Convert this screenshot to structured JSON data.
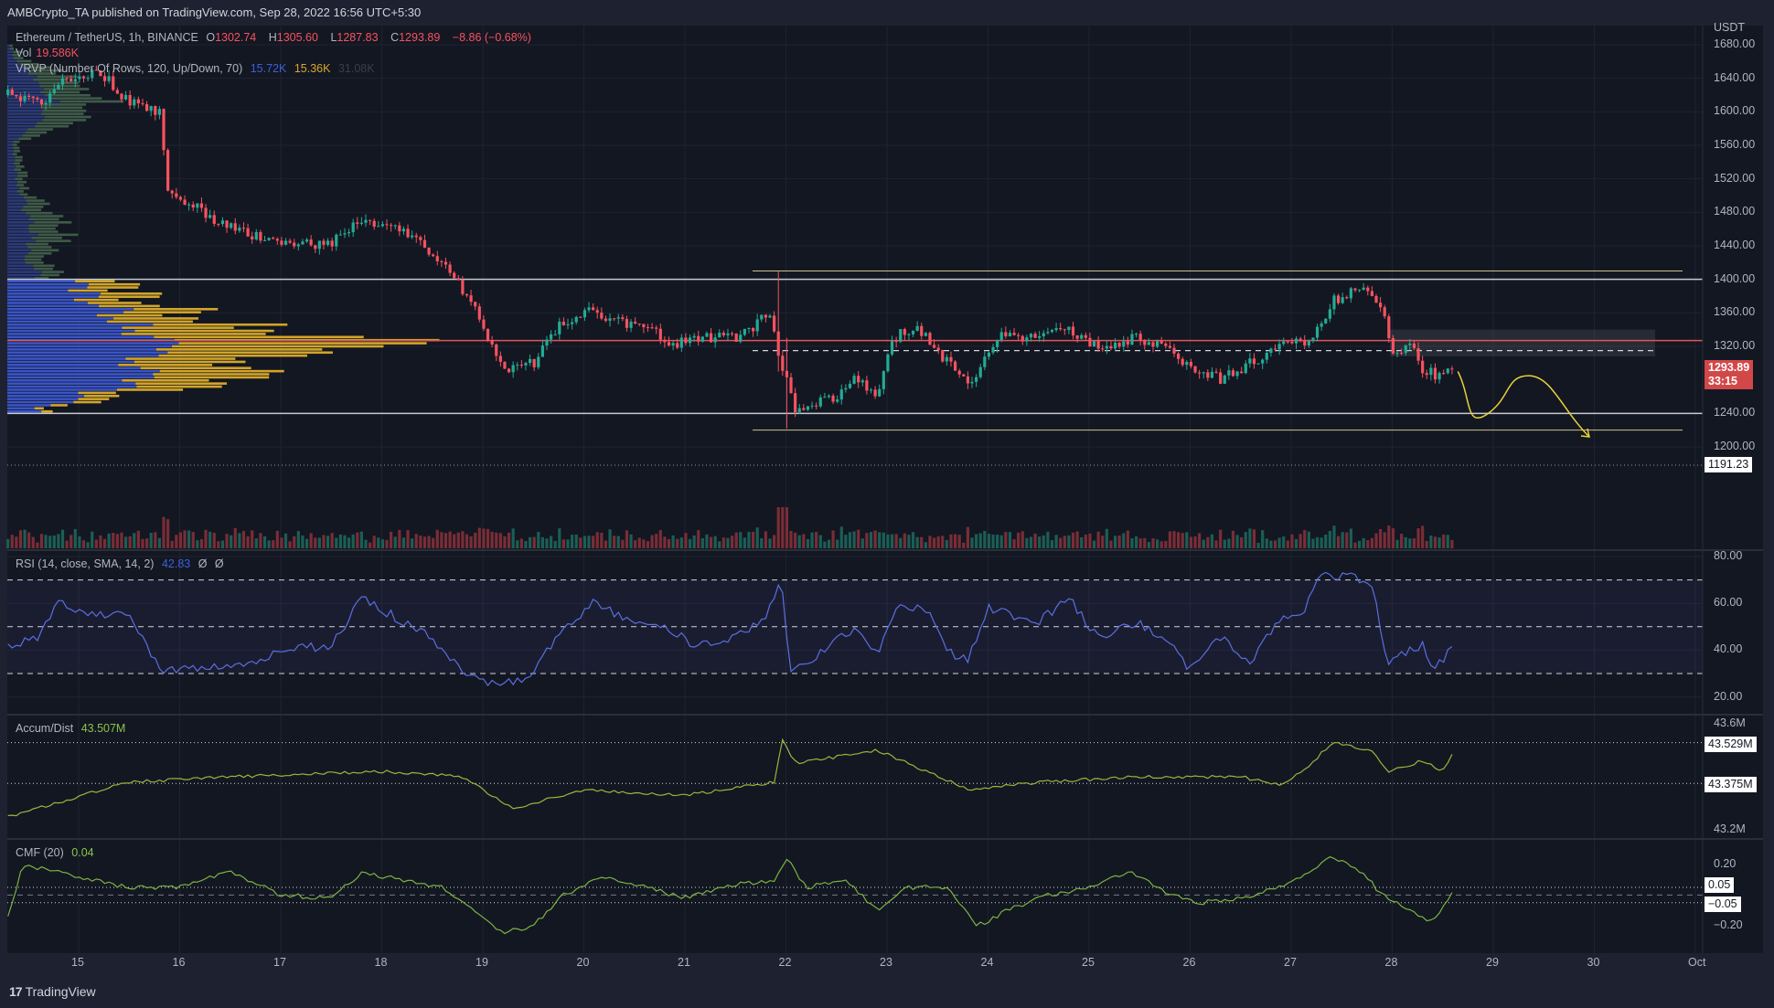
{
  "header": {
    "published": "AMBCrypto_TA published on TradingView.com, Sep 28, 2022 16:56 UTC+5:30"
  },
  "legend": {
    "symbol": "Ethereum / TetherUS, 1h, BINANCE",
    "o_label": "O",
    "o": "1302.74",
    "h_label": "H",
    "h": "1305.60",
    "l_label": "L",
    "l": "1287.83",
    "c_label": "C",
    "c": "1293.89",
    "change": "−8.86 (−0.68%)",
    "vol_label": "Vol",
    "vol": "19.586K",
    "vrvp_label": "VRVP (Number Of Rows, 120, Up/Down, 70)",
    "vrvp_up": "15.72K",
    "vrvp_down": "15.36K",
    "vrvp_total": "31.08K",
    "rsi_label": "RSI (14, close, SMA, 14, 2)",
    "rsi_value": "42.83",
    "rsi_extra1": "Ø",
    "rsi_extra2": "Ø",
    "ad_label": "Accum/Dist",
    "ad_value": "43.507M",
    "cmf_label": "CMF (20)",
    "cmf_value": "0.04"
  },
  "price_axis": {
    "currency": "USDT",
    "ticks": [
      "1680.00",
      "1640.00",
      "1600.00",
      "1560.00",
      "1520.00",
      "1480.00",
      "1440.00",
      "1400.00",
      "1360.00",
      "1320.00",
      "1240.00",
      "1200.00"
    ],
    "tick_values": [
      1680,
      1640,
      1600,
      1560,
      1520,
      1480,
      1440,
      1400,
      1360,
      1320,
      1240,
      1200
    ],
    "last_price": "1293.89",
    "countdown": "33:15",
    "crosshair_price": "1191.23"
  },
  "rsi_axis": {
    "ticks": [
      "80.00",
      "60.00",
      "40.00",
      "20.00"
    ],
    "tick_values": [
      80,
      60,
      40,
      20
    ]
  },
  "ad_axis": {
    "ticks": [
      "43.6M",
      "43.2M"
    ],
    "tick_values": [
      43.6,
      43.2
    ],
    "tags": [
      "43.529M",
      "43.375M"
    ],
    "tag_values": [
      43.529,
      43.375
    ]
  },
  "cmf_axis": {
    "ticks": [
      "0.20",
      "−0.20"
    ],
    "tick_values": [
      0.2,
      -0.2
    ],
    "tags": [
      "0.05",
      "−0.05"
    ],
    "tag_values": [
      0.05,
      -0.05
    ]
  },
  "time_axis": {
    "labels": [
      "15",
      "16",
      "17",
      "18",
      "19",
      "20",
      "21",
      "22",
      "23",
      "24",
      "25",
      "26",
      "27",
      "28",
      "29",
      "30",
      "Oct"
    ],
    "days": [
      15,
      16,
      17,
      18,
      19,
      20,
      21,
      22,
      23,
      24,
      25,
      26,
      27,
      28,
      29,
      30,
      31
    ]
  },
  "footer": {
    "brand": "TradingView"
  },
  "colors": {
    "up": "#22ab94",
    "down": "#f7525f",
    "rsi": "#5b6ee0",
    "ad": "#9cb43c",
    "cmf": "#7cb342",
    "projection": "#e6d33a",
    "poc": "#e05656"
  },
  "chart_data": {
    "type": "candlestick",
    "title": "Ethereum / TetherUS, 1h, BINANCE",
    "ylabel": "USDT",
    "ylim": [
      1190,
      1690
    ],
    "x_unit": "day of Sep 2022",
    "xlim": [
      14.3,
      31.3
    ],
    "price_path": [
      [
        14.3,
        1620
      ],
      [
        14.6,
        1610
      ],
      [
        14.9,
        1640
      ],
      [
        15.2,
        1650
      ],
      [
        15.5,
        1612
      ],
      [
        15.8,
        1600
      ],
      [
        15.88,
        1500
      ],
      [
        16.1,
        1490
      ],
      [
        16.5,
        1462
      ],
      [
        16.8,
        1450
      ],
      [
        17.1,
        1440
      ],
      [
        17.5,
        1442
      ],
      [
        17.8,
        1470
      ],
      [
        18.0,
        1462
      ],
      [
        18.3,
        1452
      ],
      [
        18.6,
        1422
      ],
      [
        18.9,
        1370
      ],
      [
        19.2,
        1292
      ],
      [
        19.5,
        1300
      ],
      [
        19.8,
        1350
      ],
      [
        20.1,
        1362
      ],
      [
        20.6,
        1342
      ],
      [
        20.9,
        1322
      ],
      [
        21.2,
        1330
      ],
      [
        21.5,
        1330
      ],
      [
        21.85,
        1360
      ],
      [
        21.95,
        1300
      ],
      [
        22.1,
        1242
      ],
      [
        22.5,
        1262
      ],
      [
        22.7,
        1282
      ],
      [
        22.9,
        1262
      ],
      [
        23.05,
        1330
      ],
      [
        23.3,
        1342
      ],
      [
        23.6,
        1300
      ],
      [
        23.8,
        1272
      ],
      [
        24.1,
        1330
      ],
      [
        24.5,
        1332
      ],
      [
        24.8,
        1342
      ],
      [
        25.1,
        1320
      ],
      [
        25.5,
        1330
      ],
      [
        25.8,
        1320
      ],
      [
        26.0,
        1292
      ],
      [
        26.3,
        1282
      ],
      [
        26.6,
        1300
      ],
      [
        26.9,
        1320
      ],
      [
        27.2,
        1330
      ],
      [
        27.4,
        1372
      ],
      [
        27.7,
        1392
      ],
      [
        27.9,
        1372
      ],
      [
        28.0,
        1312
      ],
      [
        28.2,
        1322
      ],
      [
        28.3,
        1292
      ],
      [
        28.5,
        1282
      ],
      [
        28.62,
        1294
      ]
    ],
    "wick_events": [
      [
        21.92,
        1410,
        1290
      ],
      [
        22.0,
        1330,
        1222
      ]
    ],
    "levels": {
      "resistance": 1400,
      "support": 1240,
      "poc": 1327,
      "range_high": 1410,
      "range_low": 1220,
      "mid_dashed": 1315,
      "zone": [
        1308,
        1340
      ]
    },
    "projection_path": [
      [
        28.65,
        1290
      ],
      [
        28.95,
        1240
      ],
      [
        29.35,
        1285
      ],
      [
        29.95,
        1212
      ]
    ],
    "volume_profile": [
      [
        1245,
        30,
        10
      ],
      [
        1260,
        90,
        40
      ],
      [
        1280,
        130,
        100
      ],
      [
        1300,
        140,
        120
      ],
      [
        1315,
        150,
        160
      ],
      [
        1327,
        170,
        270
      ],
      [
        1340,
        150,
        150
      ],
      [
        1360,
        120,
        80
      ],
      [
        1380,
        90,
        60
      ],
      [
        1395,
        80,
        50
      ],
      [
        1400,
        40,
        20
      ],
      [
        1420,
        20,
        20
      ],
      [
        1440,
        25,
        30
      ],
      [
        1460,
        30,
        40
      ],
      [
        1480,
        20,
        30
      ],
      [
        1500,
        15,
        10
      ],
      [
        1520,
        10,
        10
      ],
      [
        1560,
        5,
        5
      ],
      [
        1600,
        40,
        50
      ],
      [
        1620,
        50,
        60
      ],
      [
        1640,
        30,
        40
      ],
      [
        1660,
        10,
        15
      ],
      [
        1680,
        2,
        2
      ]
    ],
    "rsi": {
      "levels": [
        70,
        50,
        30
      ],
      "ylim": [
        15,
        85
      ],
      "path": [
        [
          14.3,
          42
        ],
        [
          14.6,
          45
        ],
        [
          14.8,
          60
        ],
        [
          15.1,
          55
        ],
        [
          15.5,
          55
        ],
        [
          15.8,
          32
        ],
        [
          16.2,
          32
        ],
        [
          16.6,
          33
        ],
        [
          17.0,
          40
        ],
        [
          17.5,
          42
        ],
        [
          17.8,
          62
        ],
        [
          18.1,
          55
        ],
        [
          18.5,
          45
        ],
        [
          18.8,
          30
        ],
        [
          19.2,
          25
        ],
        [
          19.5,
          30
        ],
        [
          19.8,
          50
        ],
        [
          20.1,
          60
        ],
        [
          20.5,
          52
        ],
        [
          20.8,
          50
        ],
        [
          21.1,
          42
        ],
        [
          21.5,
          45
        ],
        [
          21.8,
          55
        ],
        [
          21.95,
          70
        ],
        [
          22.05,
          30
        ],
        [
          22.3,
          38
        ],
        [
          22.7,
          50
        ],
        [
          22.9,
          38
        ],
        [
          23.1,
          58
        ],
        [
          23.4,
          58
        ],
        [
          23.6,
          40
        ],
        [
          23.8,
          35
        ],
        [
          24.0,
          58
        ],
        [
          24.5,
          52
        ],
        [
          24.8,
          62
        ],
        [
          25.1,
          45
        ],
        [
          25.5,
          52
        ],
        [
          25.8,
          42
        ],
        [
          26.0,
          32
        ],
        [
          26.3,
          45
        ],
        [
          26.6,
          35
        ],
        [
          26.9,
          55
        ],
        [
          27.1,
          55
        ],
        [
          27.3,
          72
        ],
        [
          27.6,
          72
        ],
        [
          27.8,
          68
        ],
        [
          27.95,
          35
        ],
        [
          28.1,
          38
        ],
        [
          28.3,
          42
        ],
        [
          28.4,
          30
        ],
        [
          28.62,
          43
        ]
      ]
    },
    "accum_dist": {
      "unit": "M",
      "path": [
        [
          14.3,
          43.25
        ],
        [
          15.5,
          43.38
        ],
        [
          16.5,
          43.4
        ],
        [
          18.0,
          43.42
        ],
        [
          18.8,
          43.4
        ],
        [
          19.3,
          43.28
        ],
        [
          20.0,
          43.35
        ],
        [
          21.0,
          43.33
        ],
        [
          21.9,
          43.38
        ],
        [
          21.95,
          43.55
        ],
        [
          22.1,
          43.45
        ],
        [
          22.9,
          43.5
        ],
        [
          23.4,
          43.42
        ],
        [
          23.8,
          43.35
        ],
        [
          24.5,
          43.38
        ],
        [
          25.5,
          43.4
        ],
        [
          26.5,
          43.4
        ],
        [
          26.9,
          43.37
        ],
        [
          27.2,
          43.45
        ],
        [
          27.4,
          43.53
        ],
        [
          27.8,
          43.5
        ],
        [
          27.95,
          43.42
        ],
        [
          28.3,
          43.46
        ],
        [
          28.5,
          43.42
        ],
        [
          28.62,
          43.507
        ]
      ]
    },
    "cmf": {
      "path": [
        [
          14.3,
          -0.15
        ],
        [
          14.45,
          0.2
        ],
        [
          14.8,
          0.15
        ],
        [
          15.1,
          0.1
        ],
        [
          15.5,
          0.05
        ],
        [
          16.0,
          0.05
        ],
        [
          16.5,
          0.15
        ],
        [
          17.0,
          0.0
        ],
        [
          17.5,
          -0.02
        ],
        [
          17.8,
          0.15
        ],
        [
          18.2,
          0.1
        ],
        [
          18.6,
          0.05
        ],
        [
          18.9,
          -0.1
        ],
        [
          19.2,
          -0.25
        ],
        [
          19.5,
          -0.2
        ],
        [
          19.8,
          0.0
        ],
        [
          20.2,
          0.12
        ],
        [
          20.6,
          0.05
        ],
        [
          21.0,
          -0.02
        ],
        [
          21.5,
          0.07
        ],
        [
          21.9,
          0.1
        ],
        [
          22.0,
          0.25
        ],
        [
          22.2,
          0.05
        ],
        [
          22.6,
          0.1
        ],
        [
          22.9,
          -0.1
        ],
        [
          23.2,
          0.05
        ],
        [
          23.6,
          0.05
        ],
        [
          23.9,
          -0.2
        ],
        [
          24.2,
          -0.1
        ],
        [
          24.6,
          0.0
        ],
        [
          25.0,
          0.05
        ],
        [
          25.4,
          0.15
        ],
        [
          25.8,
          0.0
        ],
        [
          26.1,
          -0.05
        ],
        [
          26.5,
          -0.02
        ],
        [
          26.9,
          0.05
        ],
        [
          27.2,
          0.15
        ],
        [
          27.4,
          0.25
        ],
        [
          27.7,
          0.15
        ],
        [
          27.9,
          0.0
        ],
        [
          28.2,
          -0.1
        ],
        [
          28.4,
          -0.18
        ],
        [
          28.62,
          0.04
        ]
      ]
    }
  }
}
